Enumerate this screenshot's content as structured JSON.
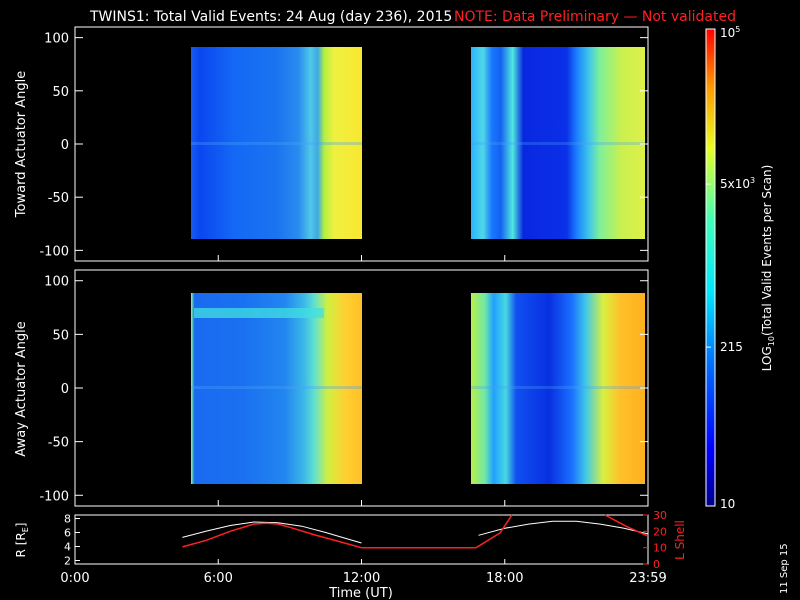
{
  "title_main": "TWINS1: Total Valid Events: 24 Aug (day 236), 2015",
  "title_note": "NOTE: Data Preliminary — Not validated",
  "stamp": "11 Sep 15",
  "colors": {
    "note": "#ff2020",
    "rcurve": "#ffffff",
    "lshell": "#ff2020"
  },
  "chart_data": [
    {
      "type": "heatmap",
      "panel": "toward",
      "ylabel": "Toward Actuator Angle",
      "ylim": [
        -110,
        110
      ],
      "yticks": [
        100,
        50,
        0,
        -50,
        -100
      ],
      "xlim": [
        0,
        24
      ],
      "data_intervals_hours": [
        [
          4.55,
          11.9
        ],
        [
          16.85,
          24.0
        ]
      ]
    },
    {
      "type": "heatmap",
      "panel": "away",
      "ylabel": "Away Actuator Angle",
      "ylim": [
        -110,
        110
      ],
      "yticks": [
        100,
        50,
        0,
        -50,
        -100
      ],
      "xlim": [
        0,
        24
      ],
      "data_intervals_hours": [
        [
          4.55,
          11.9
        ],
        [
          16.85,
          24.0
        ]
      ]
    },
    {
      "type": "line",
      "panel": "ephemeris",
      "xlabel": "Time (UT)",
      "xlim": [
        0,
        24
      ],
      "xticks": [
        0,
        6,
        12,
        18,
        24
      ],
      "xtick_labels": [
        "0:00",
        "6:00",
        "12:00",
        "18:00",
        "23:59"
      ],
      "left_axis": {
        "label": "R [R",
        "label_sub": "E",
        "label_end": "]",
        "ylim": [
          1.5,
          8.5
        ],
        "yticks": [
          2,
          4,
          6,
          8
        ]
      },
      "right_axis": {
        "label": "L Shell",
        "ylim": [
          0,
          30
        ],
        "yticks": [
          0,
          10,
          20,
          30
        ]
      },
      "series": [
        {
          "axis": "left",
          "x": [
            4.5,
            5.5,
            6.5,
            7.5,
            8.5,
            9.5,
            10.5,
            11.3,
            12.0
          ],
          "y": [
            5.3,
            6.2,
            7.0,
            7.5,
            7.4,
            6.9,
            6.0,
            5.2,
            4.5
          ]
        },
        {
          "axis": "left",
          "x": [
            16.9,
            18.0,
            19.0,
            20.0,
            21.0,
            22.0,
            23.0,
            24.0
          ],
          "y": [
            5.6,
            6.6,
            7.2,
            7.6,
            7.6,
            7.2,
            6.6,
            5.8
          ]
        },
        {
          "axis": "right",
          "x": [
            4.5,
            5.5,
            6.5,
            7.5,
            8.0,
            8.5,
            9.0,
            10.0,
            11.0,
            12.0
          ],
          "y": [
            10.5,
            14.5,
            20.0,
            24.5,
            25.0,
            24.5,
            22.5,
            18.0,
            14.0,
            10.0
          ]
        },
        {
          "axis": "right",
          "x": [
            12.0,
            16.8
          ],
          "y": [
            10.0,
            10.0
          ]
        },
        {
          "axis": "right",
          "x": [
            16.8,
            17.8,
            18.3
          ],
          "y": [
            10.0,
            19.0,
            30.0
          ]
        },
        {
          "axis": "right",
          "x": [
            22.2,
            23.1,
            24.0
          ],
          "y": [
            30.0,
            23.0,
            17.0
          ]
        }
      ]
    },
    {
      "type": "colorbar",
      "label_prefix": "LOG",
      "label_sub": "10",
      "label_rest": "(Total Valid Events per Scan)",
      "scale": "log",
      "range": [
        10,
        100000
      ],
      "ticks": [
        {
          "value": 10,
          "label": "10"
        },
        {
          "value": 215,
          "label": "215"
        },
        {
          "value": 5000,
          "label": "5x10",
          "sup": "3"
        },
        {
          "value": 100000,
          "label": "10",
          "sup": "5"
        }
      ]
    }
  ]
}
